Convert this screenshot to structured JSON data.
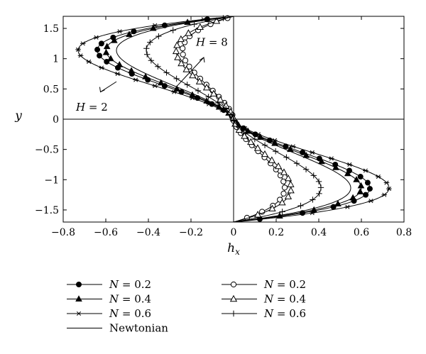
{
  "chart_data": {
    "type": "line",
    "xlabel": "h",
    "xlabel_sub": "x",
    "ylabel": "y",
    "xlim": [
      -0.8,
      0.8
    ],
    "ylim": [
      -1.7,
      1.7
    ],
    "xticks": [
      -0.8,
      -0.6,
      -0.4,
      -0.2,
      0,
      0.2,
      0.4,
      0.6,
      0.8
    ],
    "xtick_labels": [
      "−0.8",
      "−0.6",
      "−0.4",
      "−0.2",
      "0",
      "0.2",
      "0.4",
      "0.6",
      "0.8"
    ],
    "yticks": [
      -1.5,
      -1,
      -0.5,
      0,
      0.5,
      1,
      1.5
    ],
    "ytick_labels": [
      "−1.5",
      "−1",
      "−0.5",
      "0",
      "0.5",
      "1",
      "1.5"
    ],
    "grid": false,
    "reference_lines": {
      "x": 0,
      "y": 0
    },
    "curve_shape": "odd function of y, peak magnitude near |y| = 1, zero at y = 0 and y = ±1.7",
    "series": [
      {
        "name": "N = 0.2",
        "group": "H = 2",
        "marker": "filled-circle",
        "peak_hx": 0.64
      },
      {
        "name": "N = 0.4",
        "group": "H = 2",
        "marker": "filled-triangle",
        "peak_hx": 0.6
      },
      {
        "name": "N = 0.6",
        "group": "H = 2",
        "marker": "asterisk",
        "peak_hx": 0.73
      },
      {
        "name": "Newtonian",
        "group": "H = 2",
        "marker": "none",
        "peak_hx": 0.55
      },
      {
        "name": "N = 0.2",
        "group": "H = 8",
        "marker": "open-circle",
        "peak_hx": 0.24
      },
      {
        "name": "N = 0.4",
        "group": "H = 8",
        "marker": "open-triangle",
        "peak_hx": 0.27
      },
      {
        "name": "N = 0.6",
        "group": "H = 8",
        "marker": "plus",
        "peak_hx": 0.41
      }
    ],
    "annotations": [
      {
        "text": "H = 2",
        "text_parts": [
          "H",
          " = 2"
        ],
        "near_x": -0.62,
        "near_y": 0.22
      },
      {
        "text": "H = 8",
        "text_parts": [
          "H",
          " = 8"
        ],
        "near_x": -0.15,
        "near_y": 1.27
      }
    ],
    "legend": {
      "placement": "below",
      "columns": 2,
      "entries": [
        {
          "label": "N = 0.2",
          "label_parts": [
            "N",
            " = 0.2"
          ],
          "marker": "filled-circle"
        },
        {
          "label": "N = 0.2",
          "label_parts": [
            "N",
            " = 0.2"
          ],
          "marker": "open-circle"
        },
        {
          "label": "N = 0.4",
          "label_parts": [
            "N",
            " = 0.4"
          ],
          "marker": "filled-triangle"
        },
        {
          "label": "N = 0.4",
          "label_parts": [
            "N",
            " = 0.4"
          ],
          "marker": "open-triangle"
        },
        {
          "label": "N = 0.6",
          "label_parts": [
            "N",
            " = 0.6"
          ],
          "marker": "asterisk"
        },
        {
          "label": "N = 0.6",
          "label_parts": [
            "N",
            " = 0.6"
          ],
          "marker": "plus"
        },
        {
          "label": "Newtonian",
          "label_parts": [
            "Newtonian"
          ],
          "marker": "none"
        }
      ]
    }
  }
}
